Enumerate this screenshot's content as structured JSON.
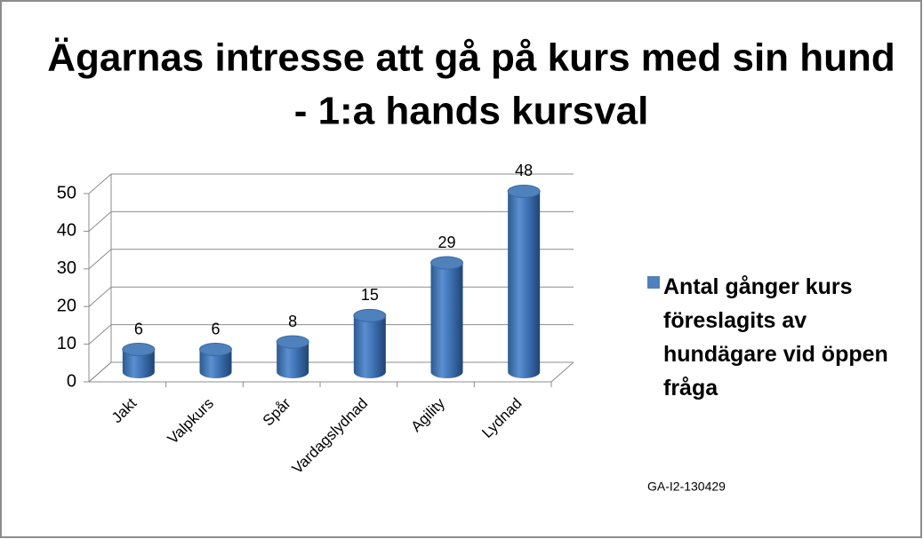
{
  "chart_data": {
    "type": "bar",
    "title": [
      "Ägarnas intresse att gå på kurs med sin hund",
      "- 1:a hands kursval"
    ],
    "categories": [
      "Jakt",
      "Valpkurs",
      "Spår",
      "Vardagslydnad",
      "Agility",
      "Lydnad"
    ],
    "series": [
      {
        "name": "Antal gånger kurs föreslagits av hundägare vid öppen fråga",
        "color": "#4f81bd",
        "values": [
          6,
          6,
          8,
          15,
          29,
          48
        ]
      }
    ],
    "ylim": [
      0,
      50
    ],
    "yticks": [
      0,
      10,
      20,
      30,
      40,
      50
    ],
    "grid": true,
    "legend": "right",
    "annotation": "GA-I2-130429"
  }
}
